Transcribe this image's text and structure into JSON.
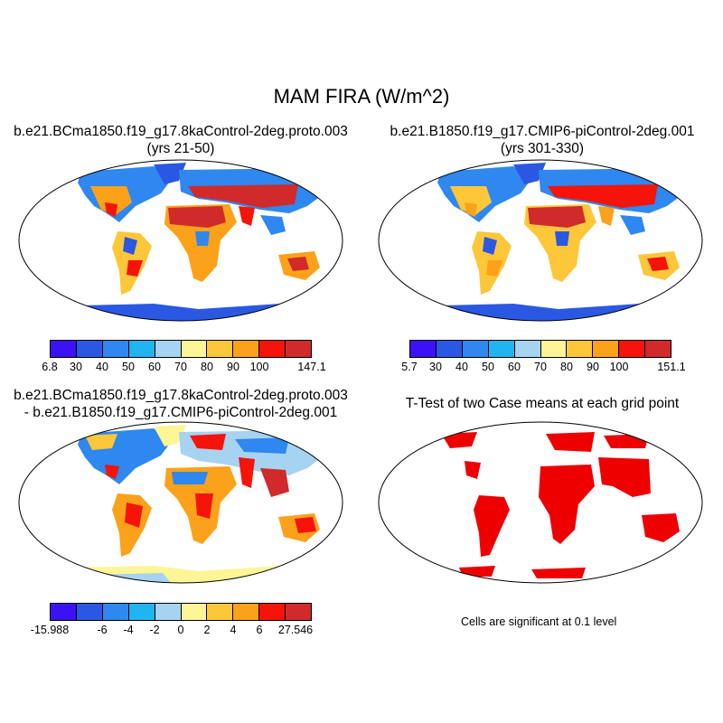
{
  "figure": {
    "title": "MAM FIRA (W/m^2)"
  },
  "panels": [
    {
      "id": "case",
      "title_line1": "b.e21.BCma1850.f19_g17.8kaControl-2deg.proto.003",
      "title_line2": "(yrs 21-50)"
    },
    {
      "id": "control",
      "title_line1": "b.e21.B1850.f19_g17.CMIP6-piControl-2deg.001",
      "title_line2": "(yrs 301-330)"
    },
    {
      "id": "difference",
      "title_line1": "b.e21.BCma1850.f19_g17.8kaControl-2deg.proto.003",
      "title_line2": "- b.e21.B1850.f19_g17.CMIP6-piControl-2deg.001"
    },
    {
      "id": "ttest",
      "title_line1": "T-Test of two Case means at each grid point",
      "note": "Cells are significant at 0.1 level"
    }
  ],
  "colorbars": {
    "case": {
      "min": "6.8",
      "max": "147.1",
      "labels": [
        "30",
        "40",
        "50",
        "60",
        "70",
        "80",
        "90",
        "100"
      ]
    },
    "control": {
      "min": "5.7",
      "max": "151.1",
      "labels": [
        "30",
        "40",
        "50",
        "60",
        "70",
        "80",
        "90",
        "100"
      ]
    },
    "difference": {
      "min": "-15.988",
      "max": "27.546",
      "labels": [
        "-6",
        "-4",
        "-2",
        "0",
        "2",
        "4",
        "6"
      ]
    }
  },
  "colors": {
    "absolute": [
      "#3a12f5",
      "#2b58e3",
      "#2f87f0",
      "#20b4f0",
      "#a5d3f0",
      "#fdf596",
      "#fec73a",
      "#fca11a",
      "#f5130a",
      "#d02a2a"
    ],
    "difference": [
      "#3a12f5",
      "#2b58e3",
      "#2f87f0",
      "#20b4f0",
      "#a5d3f0",
      "#fdf596",
      "#fec73a",
      "#fca11a",
      "#f5130a",
      "#d02a2a"
    ],
    "significant": "#ee0000",
    "coastline": "#000000",
    "antarctica_case": "#2b58e3",
    "antarctica_diff": "#fdf596"
  }
}
